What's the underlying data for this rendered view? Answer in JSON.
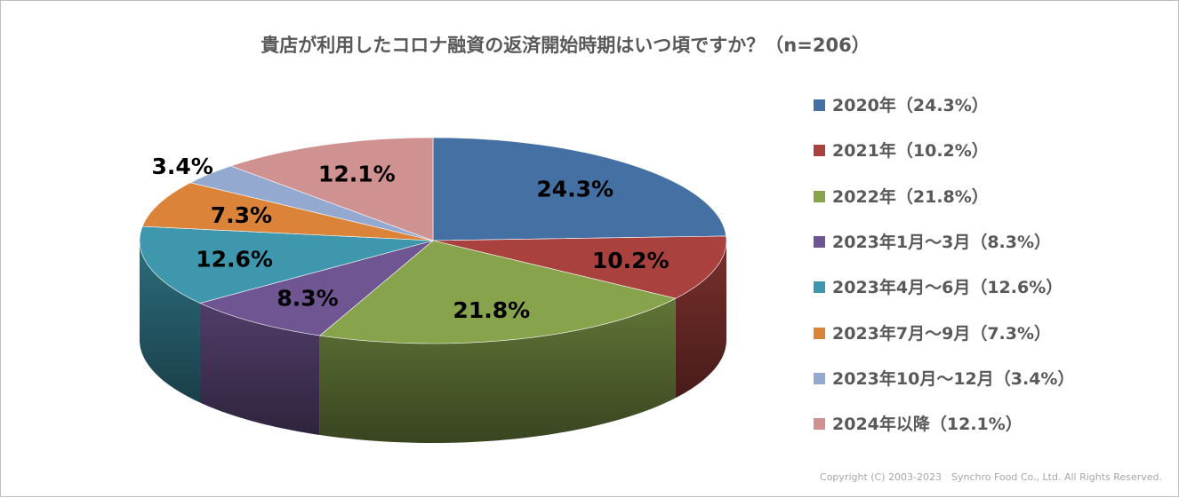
{
  "chart_data": {
    "type": "pie",
    "title": "貴店が利用したコロナ融資の返済開始時期はいつ頃ですか？（n=206）",
    "slices": [
      {
        "legend": "2020年（24.3%）",
        "label": "24.3%",
        "value": 24.3,
        "color": "#4470a4"
      },
      {
        "legend": "2021年（10.2%）",
        "label": "10.2%",
        "value": 10.2,
        "color": "#a9423f"
      },
      {
        "legend": "2022年（21.8%）",
        "label": "21.8%",
        "value": 21.8,
        "color": "#87a34c"
      },
      {
        "legend": "2023年1月～3月（8.3%）",
        "label": "8.3%",
        "value": 8.3,
        "color": "#6f5592"
      },
      {
        "legend": "2023年4月～6月（12.6%）",
        "label": "12.6%",
        "value": 12.6,
        "color": "#3e97ad"
      },
      {
        "legend": "2023年7月～9月（7.3%）",
        "label": "7.3%",
        "value": 7.3,
        "color": "#db8439"
      },
      {
        "legend": "2023年10月～12月（3.4%）",
        "label": "3.4%",
        "value": 3.4,
        "color": "#93a9d0"
      },
      {
        "legend": "2024年以降（12.1%）",
        "label": "12.1%",
        "value": 12.1,
        "color": "#d09291"
      }
    ],
    "legend_position": "right",
    "start": "top",
    "direction": "clockwise"
  },
  "copyright": "Copyright (C) 2003-2023　Synchro Food Co., Ltd. All Rights Reserved."
}
